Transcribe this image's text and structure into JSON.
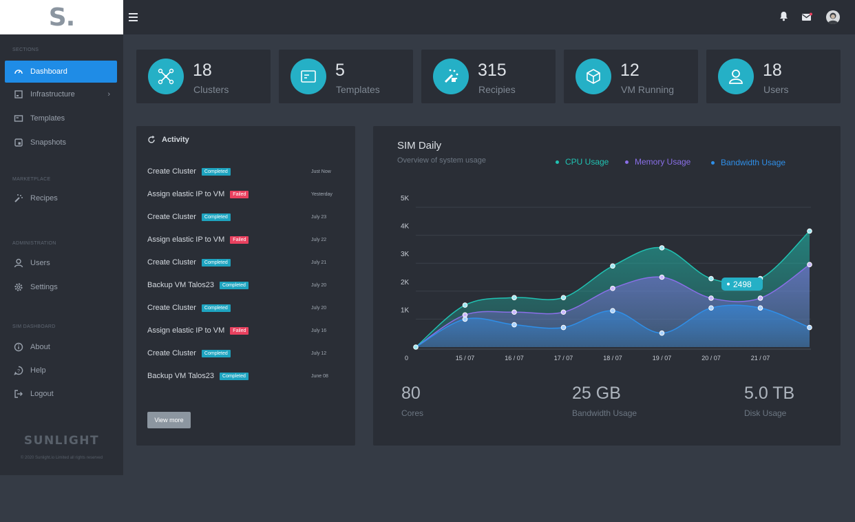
{
  "logo": {
    "text": "S."
  },
  "topbar": {
    "menu_icon": "hamburger-icon",
    "icons": [
      "bell-icon",
      "mail-icon",
      "avatar"
    ]
  },
  "sidebar": {
    "sections": [
      {
        "title": "SECTIONS",
        "items": [
          {
            "label": "Dashboard",
            "icon": "gauge-icon",
            "active": true
          },
          {
            "label": "Infrastructure",
            "icon": "server-icon",
            "has_children": true
          },
          {
            "label": "Templates",
            "icon": "template-icon"
          },
          {
            "label": "Snapshots",
            "icon": "snapshot-icon"
          }
        ]
      },
      {
        "title": "MARKETPLACE",
        "items": [
          {
            "label": "Recipes",
            "icon": "magic-wand-icon"
          }
        ]
      },
      {
        "title": "ADMINISTRATION",
        "items": [
          {
            "label": "Users",
            "icon": "user-icon"
          },
          {
            "label": "Settings",
            "icon": "gear-icon"
          }
        ]
      },
      {
        "title": "SIM DASHBOARD",
        "items": [
          {
            "label": "About",
            "icon": "info-icon"
          },
          {
            "label": "Help",
            "icon": "help-icon"
          },
          {
            "label": "Logout",
            "icon": "logout-icon"
          }
        ]
      }
    ],
    "brand": "SUNLIGHT",
    "copyright": "© 2020 Sunlight.io Limited all rights reserved"
  },
  "stats": [
    {
      "value": "18",
      "label": "Clusters",
      "icon": "cluster-icon"
    },
    {
      "value": "5",
      "label": "Templates",
      "icon": "template-icon"
    },
    {
      "value": "315",
      "label": "Recipies",
      "icon": "magic-wand-icon"
    },
    {
      "value": "12",
      "label": "VM Running",
      "icon": "cube-icon"
    },
    {
      "value": "18",
      "label": "Users",
      "icon": "user-icon"
    }
  ],
  "activity": {
    "title": "Activity",
    "items": [
      {
        "name": "Create Cluster",
        "status": "Completed",
        "state": "ok",
        "date": "Just Now"
      },
      {
        "name": "Assign elastic IP to VM",
        "status": "Failed",
        "state": "fail",
        "date": "Yesterday"
      },
      {
        "name": "Create Cluster",
        "status": "Completed",
        "state": "ok",
        "date": "July 23"
      },
      {
        "name": "Assign elastic IP to VM",
        "status": "Failed",
        "state": "fail",
        "date": "July 22"
      },
      {
        "name": "Create Cluster",
        "status": "Completed",
        "state": "ok",
        "date": "July 21"
      },
      {
        "name": "Backup VM Talos23",
        "status": "Completed",
        "state": "ok",
        "date": "July 20"
      },
      {
        "name": "Create Cluster",
        "status": "Completed",
        "state": "ok",
        "date": "July 20"
      },
      {
        "name": "Assign elastic IP to VM",
        "status": "Failed",
        "state": "fail",
        "date": "July 16"
      },
      {
        "name": "Create Cluster",
        "status": "Completed",
        "state": "ok",
        "date": "July 12"
      },
      {
        "name": "Backup VM Talos23",
        "status": "Completed",
        "state": "ok",
        "date": "June 08"
      }
    ],
    "view_more": "View more"
  },
  "chart_data": {
    "type": "area",
    "title": "SIM Daily",
    "subtitle": "Overview of system usage",
    "x": [
      "",
      "15 / 07",
      "16 / 07",
      "17 / 07",
      "18 / 07",
      "19 / 07",
      "20 / 07",
      "21 / 07",
      ""
    ],
    "x_axis_origin_label": "0",
    "y_ticks": [
      "1K",
      "2K",
      "3K",
      "4K",
      "5K"
    ],
    "ylim": [
      0,
      5000
    ],
    "grid": true,
    "legend_position": "top-right",
    "series": [
      {
        "name": "CPU Usage",
        "color": "#20c3b3",
        "values": [
          0,
          1500,
          1770,
          1770,
          2900,
          3550,
          2450,
          2450,
          4150
        ]
      },
      {
        "name": "Memory Usage",
        "color": "#8a6fe8",
        "values": [
          0,
          1150,
          1250,
          1250,
          2100,
          2500,
          1750,
          1750,
          2950
        ]
      },
      {
        "name": "Bandwidth Usage",
        "color": "#2f8fe8",
        "values": [
          0,
          1000,
          800,
          700,
          1300,
          500,
          1400,
          1400,
          700
        ]
      }
    ],
    "annotation": {
      "label": "2498"
    }
  },
  "summary": [
    {
      "value": "80",
      "label": "Cores"
    },
    {
      "value": "25 GB",
      "label": "Bandwidth Usage"
    },
    {
      "value": "5.0 TB",
      "label": "Disk Usage"
    }
  ]
}
